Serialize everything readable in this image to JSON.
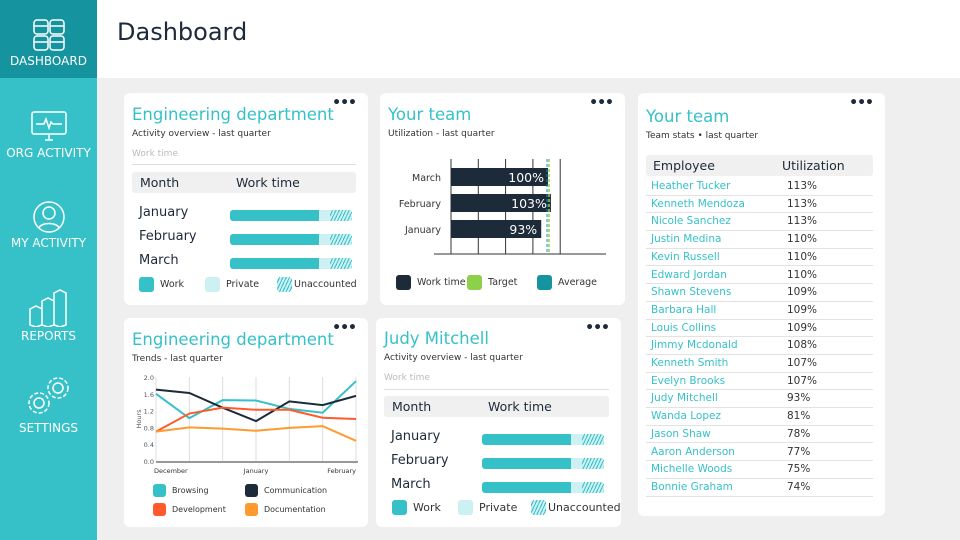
{
  "sidebar": {
    "items": [
      {
        "label": "DASHBOARD",
        "icon": "dashboard-grid-icon",
        "active": true
      },
      {
        "label": "ORG ACTIVITY",
        "icon": "monitor-pulse-icon"
      },
      {
        "label": "MY ACTIVITY",
        "icon": "user-circle-icon"
      },
      {
        "label": "REPORTS",
        "icon": "bar-chart-3d-icon"
      },
      {
        "label": "SETTINGS",
        "icon": "gears-icon"
      }
    ]
  },
  "header": {
    "title": "Dashboard"
  },
  "colors": {
    "teal": "#36c1c9",
    "dark": "#1d2a3a",
    "target": "#8dd14a",
    "average": "#15949f",
    "development": "#ff5a2c",
    "documentation": "#ff9a2e"
  },
  "eng_card": {
    "title": "Engineering department",
    "subtitle": "Activity overview - last quarter",
    "section": "Work time",
    "col_month": "Month",
    "col_work": "Work time",
    "rows": [
      {
        "month": "January",
        "work": 73,
        "private": 9,
        "unaccounted": 18
      },
      {
        "month": "February",
        "work": 73,
        "private": 9,
        "unaccounted": 18
      },
      {
        "month": "March",
        "work": 73,
        "private": 9,
        "unaccounted": 18
      }
    ],
    "legend": [
      "Work",
      "Private",
      "Unaccounted"
    ]
  },
  "team_util": {
    "title": "Your team",
    "subtitle": "Utilization - last quarter",
    "legend": [
      "Work time",
      "Target",
      "Average"
    ]
  },
  "trends": {
    "title": "Engineering department",
    "subtitle": "Trends - last quarter"
  },
  "judy_card": {
    "title": "Judy Mitchell",
    "subtitle": "Activity overview - last quarter",
    "section": "Work time",
    "col_month": "Month",
    "col_work": "Work time",
    "rows": [
      {
        "month": "January",
        "work": 73,
        "private": 9,
        "unaccounted": 18
      },
      {
        "month": "February",
        "work": 73,
        "private": 9,
        "unaccounted": 18
      },
      {
        "month": "March",
        "work": 73,
        "private": 9,
        "unaccounted": 18
      }
    ],
    "legend": [
      "Work",
      "Private",
      "Unaccounted"
    ]
  },
  "team_stats": {
    "title": "Your team",
    "subtitle": "Team stats • last quarter",
    "col_employee": "Employee",
    "col_util": "Utilization",
    "rows": [
      {
        "name": "Heather Tucker",
        "util": "113%"
      },
      {
        "name": "Kenneth Mendoza",
        "util": "113%"
      },
      {
        "name": "Nicole Sanchez",
        "util": "113%"
      },
      {
        "name": "Justin Medina",
        "util": "110%"
      },
      {
        "name": "Kevin Russell",
        "util": "110%"
      },
      {
        "name": "Edward Jordan",
        "util": "110%"
      },
      {
        "name": "Shawn Stevens",
        "util": "109%"
      },
      {
        "name": "Barbara Hall",
        "util": "109%"
      },
      {
        "name": "Louis Collins",
        "util": "109%"
      },
      {
        "name": "Jimmy Mcdonald",
        "util": "108%"
      },
      {
        "name": "Kenneth Smith",
        "util": "107%"
      },
      {
        "name": "Evelyn Brooks",
        "util": "107%"
      },
      {
        "name": "Judy Mitchell",
        "util": "93%"
      },
      {
        "name": "Wanda Lopez",
        "util": "81%"
      },
      {
        "name": "Jason Shaw",
        "util": "78%"
      },
      {
        "name": "Aaron Anderson",
        "util": "77%"
      },
      {
        "name": "Michelle Woods",
        "util": "75%"
      },
      {
        "name": "Bonnie Graham",
        "util": "74%"
      }
    ]
  },
  "chart_data": [
    {
      "type": "bar",
      "orientation": "horizontal",
      "categories": [
        "March",
        "February",
        "January"
      ],
      "series": [
        {
          "name": "Work time",
          "values": [
            100,
            103,
            93
          ]
        }
      ],
      "data_labels": [
        "100%",
        "103%",
        "93%"
      ],
      "target": 100,
      "average": 99,
      "xlim": [
        0,
        115
      ],
      "legend": [
        "Work time",
        "Target",
        "Average"
      ],
      "legend_placement": "bottom",
      "grid": true
    },
    {
      "type": "line",
      "x": [
        "December",
        "",
        "",
        "January",
        "",
        "",
        "February"
      ],
      "xtick_labels": [
        "December",
        "January",
        "February"
      ],
      "ylabel": "Hours",
      "ylim": [
        0,
        2.0
      ],
      "yticks": [
        "0.0",
        "0.4",
        "0.8",
        "1.2",
        "1.6",
        "2.0"
      ],
      "grid": true,
      "legend_placement": "bottom",
      "series": [
        {
          "name": "Browsing",
          "color": "#36c1c9",
          "values": [
            1.6,
            1.02,
            1.45,
            1.44,
            1.24,
            1.15,
            1.9
          ]
        },
        {
          "name": "Communication",
          "color": "#1d2a3a",
          "values": [
            1.7,
            1.62,
            1.27,
            0.95,
            1.42,
            1.33,
            1.55
          ]
        },
        {
          "name": "Development",
          "color": "#ff5a2c",
          "values": [
            0.7,
            1.13,
            1.27,
            1.22,
            1.22,
            1.03,
            1.0
          ]
        },
        {
          "name": "Documentation",
          "color": "#ff9a2e",
          "values": [
            0.7,
            0.8,
            0.77,
            0.72,
            0.79,
            0.83,
            0.48
          ]
        }
      ]
    }
  ]
}
